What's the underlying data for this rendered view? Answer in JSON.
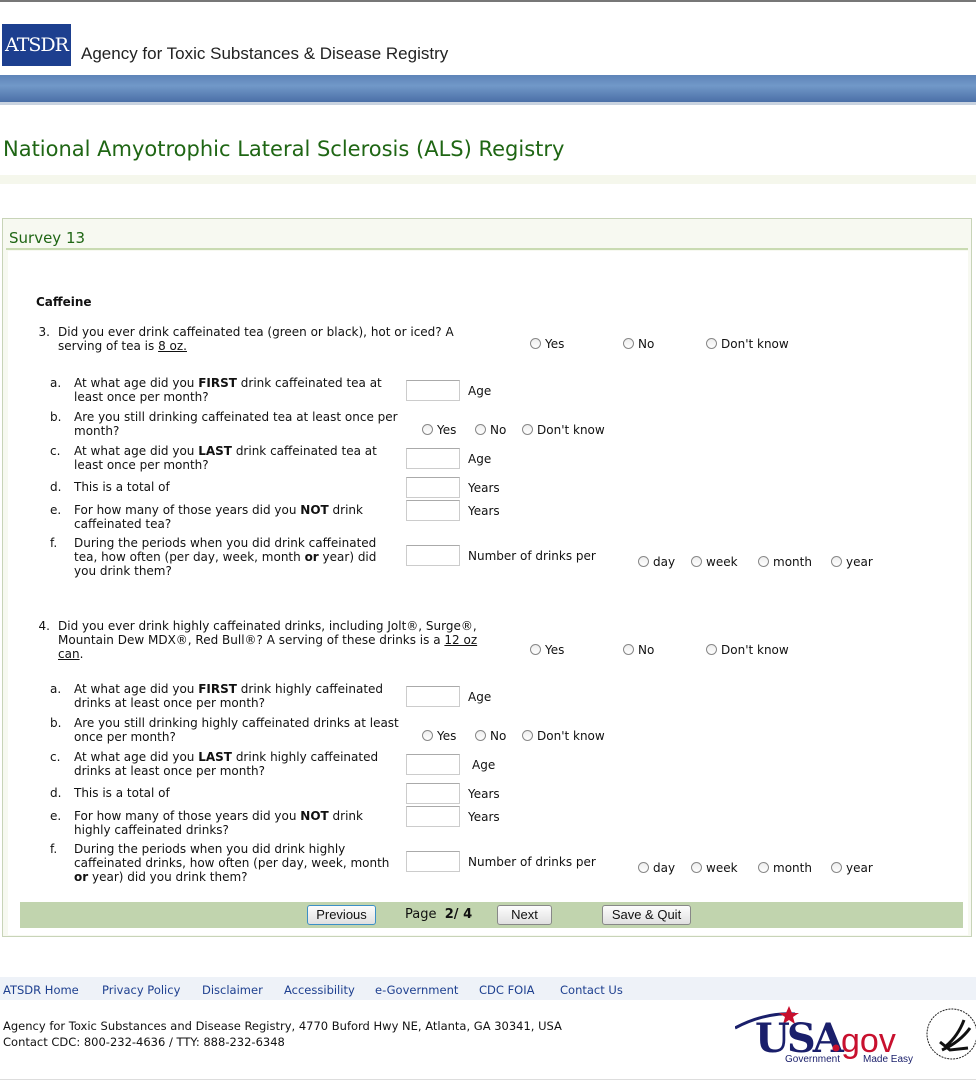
{
  "header": {
    "logo": "ATSDR",
    "agency": "Agency for Toxic Substances & Disease Registry",
    "title": "National Amyotrophic Lateral Sclerosis (ALS) Registry"
  },
  "panel": {
    "title": "Survey 13",
    "section": "Caffeine"
  },
  "radio_labels": {
    "yes": "Yes",
    "no": "No",
    "dont_know": "Don't know",
    "day": "day",
    "week": "week",
    "month": "month",
    "year": "year"
  },
  "questions": [
    {
      "number": "3.",
      "text": "Did you ever drink caffeinated tea (green or black), hot or iced? A serving of tea is ",
      "serving": "8 oz.",
      "serving_tail": "",
      "subs": [
        {
          "letter": "a.",
          "parts": [
            "At what age did you ",
            "FIRST",
            " drink caffeinated tea at least once per month?"
          ],
          "unit": "Age"
        },
        {
          "letter": "b.",
          "parts": [
            "Are you still drinking caffeinated tea at least once per month?"
          ]
        },
        {
          "letter": "c.",
          "parts": [
            "At what age did you ",
            "LAST",
            " drink caffeinated tea at least once per month?"
          ],
          "unit": "Age"
        },
        {
          "letter": "d.",
          "parts": [
            "This is a total of"
          ],
          "unit": "Years"
        },
        {
          "letter": "e.",
          "parts": [
            "For how many of those years did you ",
            "NOT",
            " drink caffeinated tea?"
          ],
          "unit": "Years"
        },
        {
          "letter": "f.",
          "parts": [
            "During the periods when you did drink caffeinated tea, how often (per day, week, month ",
            "or",
            " year) did you drink them?"
          ],
          "unit": "Number of drinks per"
        }
      ]
    },
    {
      "number": "4.",
      "text": "Did you ever drink highly caffeinated drinks, including Jolt®, Surge®, Mountain Dew MDX®, Red Bull®? A serving of these drinks is a ",
      "serving": "12 oz can",
      "serving_tail": ".",
      "subs": [
        {
          "letter": "a.",
          "parts": [
            "At what age did you ",
            "FIRST",
            " drink highly caffeinated drinks at least once per month?"
          ],
          "unit": "Age"
        },
        {
          "letter": "b.",
          "parts": [
            "Are you still drinking highly caffeinated drinks at least once per month?"
          ]
        },
        {
          "letter": "c.",
          "parts": [
            "At what age did you ",
            "LAST",
            " drink highly caffeinated drinks at least once per month?"
          ],
          "unit": "Age"
        },
        {
          "letter": "d.",
          "parts": [
            "This is a total of"
          ],
          "unit": "Years"
        },
        {
          "letter": "e.",
          "parts": [
            "For how many of those years did you ",
            "NOT",
            " drink highly caffeinated drinks?"
          ],
          "unit": "Years"
        },
        {
          "letter": "f.",
          "parts": [
            "During the periods when you did drink highly caffeinated drinks, how often (per day, week, month ",
            "or",
            " year) did you drink them?"
          ],
          "unit": "Number of drinks per"
        }
      ]
    }
  ],
  "nav": {
    "previous": "Previous",
    "page_label": "Page",
    "page_value": "2/ 4",
    "next": "Next",
    "save_quit": "Save & Quit"
  },
  "footer": {
    "links": [
      "ATSDR Home",
      "Privacy Policy",
      "Disclaimer",
      "Accessibility",
      "e-Government",
      "CDC FOIA",
      "Contact Us"
    ],
    "address": "Agency for Toxic Substances and Disease Registry, 4770 Buford Hwy NE, Atlanta, GA 30341, USA",
    "contact": "Contact CDC: 800-232-4636 / TTY: 888-232-6348",
    "usagov_logo": "USA.gov Government Made Easy",
    "hhs_seal": "Department of Health & Human Services USA"
  },
  "colors": {
    "brand_blue": "#1d3f8f",
    "title_green": "#1f6614",
    "button_bar": "#c1d4ae"
  }
}
